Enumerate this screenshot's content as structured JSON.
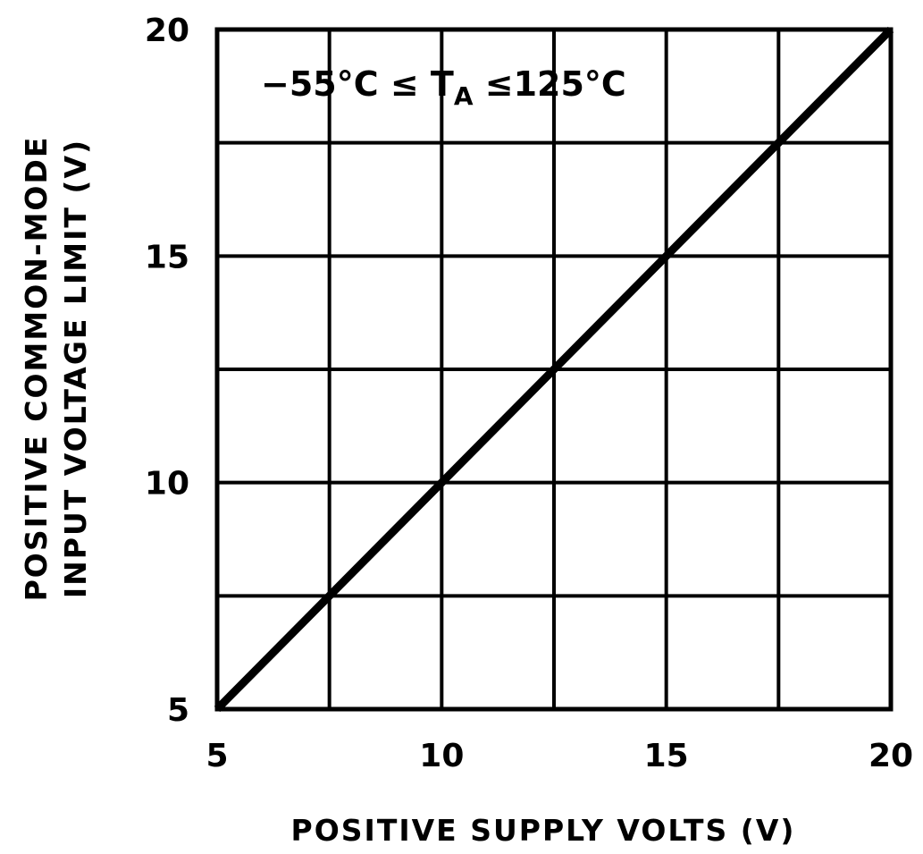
{
  "chart_data": {
    "type": "line",
    "xlabel": "POSITIVE SUPPLY VOLTS (V)",
    "ylabel_lines": [
      "POSITIVE COMMON-MODE",
      "INPUT VOLTAGE LIMIT (V)"
    ],
    "xlim": [
      5,
      20
    ],
    "ylim": [
      5,
      20
    ],
    "x_ticks": [
      5,
      10,
      15,
      20
    ],
    "y_ticks": [
      5,
      10,
      15,
      20
    ],
    "x_tick_labels": [
      "5",
      "10",
      "15",
      "20"
    ],
    "y_tick_labels": [
      "5",
      "10",
      "15",
      "20"
    ],
    "grid": true,
    "grid_step": 2.5,
    "annotation": {
      "prefix": "−55°C ≤ T",
      "subscript": "A",
      "suffix": " ≤125°C"
    },
    "series": [
      {
        "x": [
          5,
          20
        ],
        "y": [
          5,
          20
        ]
      }
    ],
    "line_color": "#000000"
  }
}
